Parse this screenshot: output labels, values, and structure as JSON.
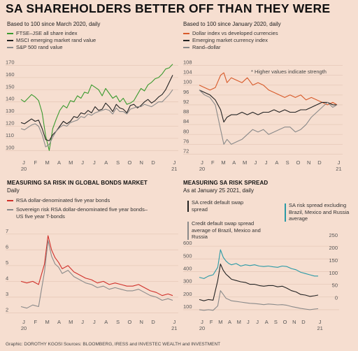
{
  "headline": "SA SHAREHOLDERS BETTER OFF THAN THEY WERE",
  "footer": "Graphic: DOROTHY KGOSI    Sources: BLOOMBERG, IRESS and INVESTEC WEALTH and INVESTMENT",
  "colors": {
    "background": "#f6ded0",
    "green": "#3a9a2e",
    "black": "#222222",
    "grey": "#8a8a8a",
    "orange": "#d85a2a",
    "red": "#d0302a",
    "teal": "#2a9aa6",
    "grid": "#e6c9b9"
  },
  "panels": {
    "top_left": {
      "subtitle": "Based to 100 since March 2020, daily",
      "legend": [
        {
          "label": "FTSE–JSE all share index",
          "color": "#3a9a2e"
        },
        {
          "label": "MSCI emerging market rand value",
          "color": "#222222"
        },
        {
          "label": "S&P 500 rand value",
          "color": "#8a8a8a"
        }
      ]
    },
    "top_right": {
      "subtitle": "Based to 100 since January 2020, daily",
      "legend": [
        {
          "label": "Dollar index vs developed currencies",
          "color": "#d85a2a"
        },
        {
          "label": "Emerging market currency index",
          "color": "#222222"
        },
        {
          "label": "Rand–dollar",
          "color": "#8a8a8a"
        }
      ],
      "note": "* Higher values indicate strength"
    },
    "bottom_left": {
      "title": "MEASURING SA RISK IN GLOBAL BONDS MARKET",
      "subtitle": "Daily",
      "legend": [
        {
          "label": "RSA dollar-denominated five year bonds",
          "color": "#d0302a"
        },
        {
          "label": "Sovereign risk RSA dollar-denominated five year bonds– US five year T-bonds",
          "color": "#8a8a8a"
        }
      ]
    },
    "bottom_right": {
      "title": "MEASURING SA RISK SPREAD",
      "subtitle": "As at January 25 2021, daily",
      "annotations": {
        "sa_cds": "SA credit default swap spread",
        "cds_avg": "Credit default swap spread average of Brazil, Mexico and Russia",
        "sa_excl": "SA risk spread excluding Brazil, Mexico and Russia average"
      }
    }
  },
  "chart_data": [
    {
      "type": "line",
      "title": "Based to 100 since March 2020, daily",
      "x": [
        "J\n20",
        "F",
        "M",
        "A",
        "M",
        "J",
        "J",
        "A",
        "S",
        "O",
        "N",
        "D",
        "J\n21"
      ],
      "x_index": [
        0,
        1,
        2,
        3,
        4,
        5,
        6,
        7,
        8,
        9,
        10,
        11,
        12.8
      ],
      "ylim": [
        95,
        172
      ],
      "yticks": [
        100,
        110,
        120,
        130,
        140,
        150,
        160,
        170
      ],
      "series": [
        {
          "name": "FTSE–JSE all share index",
          "color": "#3a9a2e",
          "x": [
            0,
            0.3,
            0.6,
            0.9,
            1.2,
            1.5,
            1.8,
            2.1,
            2.4,
            2.7,
            3.0,
            3.3,
            3.6,
            3.9,
            4.2,
            4.5,
            4.8,
            5.1,
            5.4,
            5.7,
            6.0,
            6.3,
            6.6,
            6.9,
            7.2,
            7.5,
            7.8,
            8.1,
            8.4,
            8.7,
            9.0,
            9.3,
            9.6,
            9.9,
            10.2,
            10.5,
            10.8,
            11.1,
            11.4,
            11.7,
            12.0,
            12.3,
            12.6,
            12.9
          ],
          "values": [
            142,
            140,
            143,
            146,
            144,
            141,
            131,
            112,
            100,
            118,
            126,
            133,
            137,
            135,
            141,
            140,
            145,
            143,
            148,
            147,
            154,
            152,
            150,
            145,
            151,
            147,
            143,
            145,
            140,
            143,
            138,
            139,
            141,
            146,
            151,
            149,
            154,
            156,
            159,
            160,
            163,
            167,
            168,
            171
          ]
        },
        {
          "name": "MSCI emerging market rand value",
          "color": "#222222",
          "x": [
            0,
            0.3,
            0.6,
            0.9,
            1.2,
            1.5,
            1.8,
            2.1,
            2.4,
            2.7,
            3.0,
            3.3,
            3.6,
            3.9,
            4.2,
            4.5,
            4.8,
            5.1,
            5.4,
            5.7,
            6.0,
            6.3,
            6.6,
            6.9,
            7.2,
            7.5,
            7.8,
            8.1,
            8.4,
            8.7,
            9.0,
            9.3,
            9.6,
            9.9,
            10.2,
            10.5,
            10.8,
            11.1,
            11.4,
            11.7,
            12.0,
            12.3,
            12.6,
            12.9
          ],
          "values": [
            123,
            122,
            124,
            126,
            124,
            125,
            118,
            109,
            108,
            113,
            116,
            120,
            124,
            122,
            124,
            128,
            127,
            131,
            130,
            133,
            131,
            136,
            133,
            134,
            139,
            136,
            132,
            138,
            135,
            134,
            131,
            137,
            138,
            135,
            137,
            140,
            142,
            139,
            141,
            144,
            146,
            150,
            156,
            162
          ]
        },
        {
          "name": "S&P 500 rand value",
          "color": "#8a8a8a",
          "x": [
            0,
            0.3,
            0.6,
            0.9,
            1.2,
            1.5,
            1.8,
            2.1,
            2.4,
            2.7,
            3.0,
            3.3,
            3.6,
            3.9,
            4.2,
            4.5,
            4.8,
            5.1,
            5.4,
            5.7,
            6.0,
            6.3,
            6.6,
            6.9,
            7.2,
            7.5,
            7.8,
            8.1,
            8.4,
            8.7,
            9.0,
            9.3,
            9.6,
            9.9,
            10.2,
            10.5,
            10.8,
            11.1,
            11.4,
            11.7,
            12.0,
            12.3,
            12.6,
            12.9
          ],
          "values": [
            118,
            117,
            119,
            121,
            122,
            120,
            113,
            103,
            105,
            111,
            116,
            119,
            121,
            120,
            123,
            124,
            125,
            128,
            127,
            130,
            129,
            131,
            132,
            133,
            134,
            133,
            130,
            135,
            132,
            132,
            130,
            134,
            135,
            136,
            136,
            138,
            137,
            136,
            138,
            140,
            140,
            143,
            146,
            150
          ]
        }
      ]
    },
    {
      "type": "line",
      "title": "Based to 100 since January 2020, daily",
      "x": [
        "J\n20",
        "F",
        "M",
        "A",
        "M",
        "J",
        "J",
        "A",
        "S",
        "O",
        "N",
        "D",
        "J\n21"
      ],
      "x_index": [
        0,
        1,
        2,
        3,
        4,
        5,
        6,
        7,
        8,
        9,
        10,
        11,
        12.8
      ],
      "ylim": [
        71,
        109
      ],
      "yticks": [
        72,
        76,
        80,
        84,
        88,
        92,
        96,
        100,
        104,
        108
      ],
      "series": [
        {
          "name": "Dollar index vs developed currencies",
          "color": "#d85a2a",
          "x": [
            0,
            0.5,
            1.0,
            1.5,
            2.0,
            2.3,
            2.6,
            3.0,
            3.5,
            4.0,
            4.5,
            5.0,
            5.5,
            6.0,
            6.5,
            7.0,
            7.5,
            8.0,
            8.5,
            9.0,
            9.5,
            10.0,
            10.5,
            11.0,
            11.5,
            12.0,
            12.5,
            12.9
          ],
          "values": [
            100,
            99,
            98,
            99,
            104,
            105,
            101,
            103,
            102,
            101,
            103,
            100,
            101,
            100,
            98,
            97,
            96,
            95,
            96,
            95,
            96,
            94,
            95,
            94,
            93,
            92,
            93,
            92
          ]
        },
        {
          "name": "Emerging market currency index",
          "color": "#222222",
          "x": [
            0,
            0.5,
            1.0,
            1.5,
            2.0,
            2.3,
            2.6,
            3.0,
            3.5,
            4.0,
            4.5,
            5.0,
            5.5,
            6.0,
            6.5,
            7.0,
            7.5,
            8.0,
            8.5,
            9.0,
            9.5,
            10.0,
            10.5,
            11.0,
            11.5,
            12.0,
            12.5,
            12.9
          ],
          "values": [
            98,
            97,
            96,
            94,
            90,
            85,
            87,
            88,
            88,
            89,
            88,
            89,
            88,
            89,
            89,
            90,
            89,
            90,
            89,
            89,
            90,
            90,
            91,
            92,
            93,
            93,
            92,
            92
          ]
        },
        {
          "name": "Rand–dollar",
          "color": "#8a8a8a",
          "x": [
            0,
            0.5,
            1.0,
            1.5,
            2.0,
            2.3,
            2.6,
            3.0,
            3.5,
            4.0,
            4.5,
            5.0,
            5.5,
            6.0,
            6.5,
            7.0,
            7.5,
            8.0,
            8.5,
            9.0,
            9.5,
            10.0,
            10.5,
            11.0,
            11.5,
            12.0,
            12.5,
            12.9
          ],
          "values": [
            98,
            96,
            95,
            92,
            82,
            76,
            78,
            76,
            77,
            78,
            80,
            82,
            81,
            82,
            80,
            81,
            82,
            83,
            83,
            81,
            82,
            84,
            87,
            89,
            91,
            93,
            91,
            92
          ]
        }
      ]
    },
    {
      "type": "line",
      "title": "MEASURING SA RISK IN GLOBAL BONDS MARKET",
      "x": [
        "J\n20",
        "F",
        "M",
        "A",
        "M",
        "J",
        "J",
        "A",
        "S",
        "O",
        "N",
        "D",
        "J\n21"
      ],
      "x_index": [
        0,
        1,
        2,
        3,
        4,
        5,
        6,
        7,
        8,
        9,
        10,
        11,
        12.8
      ],
      "ylim": [
        1.8,
        7.3
      ],
      "yticks": [
        2,
        3,
        4,
        5,
        6,
        7
      ],
      "series": [
        {
          "name": "RSA dollar-denominated five year bonds",
          "color": "#d0302a",
          "x": [
            0,
            0.5,
            1.0,
            1.5,
            2.0,
            2.3,
            2.6,
            2.9,
            3.2,
            3.5,
            4.0,
            4.5,
            5.0,
            5.5,
            6.0,
            6.5,
            7.0,
            7.5,
            8.0,
            8.5,
            9.0,
            9.5,
            10.0,
            10.5,
            11.0,
            11.5,
            12.0,
            12.5,
            12.9
          ],
          "values": [
            4.0,
            3.9,
            4.0,
            3.8,
            5.1,
            6.9,
            6.0,
            5.5,
            5.2,
            4.8,
            5.0,
            4.6,
            4.4,
            4.2,
            4.1,
            3.9,
            4.0,
            3.8,
            3.9,
            3.8,
            3.7,
            3.7,
            3.8,
            3.6,
            3.4,
            3.3,
            3.1,
            3.2,
            3.1
          ]
        },
        {
          "name": "Sovereign risk RSA dollar-denominated five year bonds– US five year T-bonds",
          "color": "#8a8a8a",
          "x": [
            0,
            0.5,
            1.0,
            1.5,
            2.0,
            2.3,
            2.6,
            2.9,
            3.2,
            3.5,
            4.0,
            4.5,
            5.0,
            5.5,
            6.0,
            6.5,
            7.0,
            7.5,
            8.0,
            8.5,
            9.0,
            9.5,
            10.0,
            10.5,
            11.0,
            11.5,
            12.0,
            12.5,
            12.9
          ],
          "values": [
            2.4,
            2.3,
            2.5,
            2.4,
            4.6,
            6.6,
            5.6,
            5.1,
            4.9,
            4.5,
            4.7,
            4.3,
            4.1,
            3.9,
            3.8,
            3.6,
            3.7,
            3.5,
            3.6,
            3.5,
            3.4,
            3.4,
            3.5,
            3.3,
            3.1,
            3.0,
            2.8,
            2.9,
            2.8
          ]
        }
      ]
    },
    {
      "type": "line",
      "title": "MEASURING SA RISK SPREAD",
      "x": [
        "J\n20",
        "F",
        "M",
        "A",
        "M",
        "J",
        "J",
        "A",
        "S",
        "O",
        "N",
        "D",
        "J\n21"
      ],
      "x_index": [
        0,
        1,
        2,
        3,
        4,
        5,
        6,
        7,
        8,
        9,
        10,
        11,
        12.8
      ],
      "y_left": {
        "ylim": [
          50,
          700
        ],
        "yticks": [
          100,
          200,
          300,
          400,
          500,
          600
        ]
      },
      "y_right": {
        "ylim": [
          -60,
          270
        ],
        "yticks": [
          0,
          50,
          100,
          150,
          200,
          250
        ]
      },
      "series": [
        {
          "name": "SA credit default swap spread",
          "color": "#222222",
          "axis": "left",
          "x": [
            0,
            0.5,
            1.0,
            1.5,
            2.0,
            2.3,
            2.6,
            2.9,
            3.2,
            3.5,
            4.0,
            4.5,
            5.0,
            5.5,
            6.0,
            6.5,
            7.0,
            7.5,
            8.0,
            8.5,
            9.0,
            9.5,
            10.0,
            10.5,
            11.0,
            11.5,
            12.0,
            12.5,
            12.9
          ],
          "values": [
            180,
            170,
            180,
            175,
            330,
            460,
            410,
            380,
            360,
            340,
            330,
            320,
            315,
            300,
            300,
            290,
            285,
            290,
            290,
            280,
            285,
            270,
            250,
            240,
            220,
            215,
            205,
            210,
            215
          ]
        },
        {
          "name": "Credit default swap spread average of Brazil, Mexico and Russia",
          "color": "#8a8a8a",
          "axis": "left",
          "x": [
            0,
            0.5,
            1.0,
            1.5,
            2.0,
            2.3,
            2.6,
            2.9,
            3.2,
            3.5,
            4.0,
            4.5,
            5.0,
            5.5,
            6.0,
            6.5,
            7.0,
            7.5,
            8.0,
            8.5,
            9.0,
            9.5,
            10.0,
            10.5,
            11.0,
            11.5,
            12.0,
            12.5,
            12.9
          ],
          "values": [
            100,
            95,
            100,
            95,
            130,
            250,
            220,
            190,
            180,
            170,
            165,
            160,
            155,
            150,
            148,
            145,
            140,
            145,
            142,
            138,
            140,
            135,
            125,
            118,
            110,
            105,
            100,
            105,
            108
          ]
        },
        {
          "name": "SA risk spread excluding Brazil, Mexico and Russia average",
          "color": "#2a9aa6",
          "axis": "right",
          "x": [
            0,
            0.5,
            1.0,
            1.5,
            2.0,
            2.3,
            2.6,
            2.9,
            3.2,
            3.5,
            4.0,
            4.5,
            5.0,
            5.5,
            6.0,
            6.5,
            7.0,
            7.5,
            8.0,
            8.5,
            9.0,
            9.5,
            10.0,
            10.5,
            11.0,
            11.5,
            12.0,
            12.5,
            12.9
          ],
          "values": [
            95,
            90,
            100,
            105,
            135,
            205,
            175,
            160,
            150,
            145,
            150,
            140,
            145,
            142,
            145,
            140,
            138,
            140,
            137,
            135,
            140,
            138,
            130,
            125,
            115,
            110,
            105,
            100,
            100
          ]
        }
      ]
    }
  ]
}
